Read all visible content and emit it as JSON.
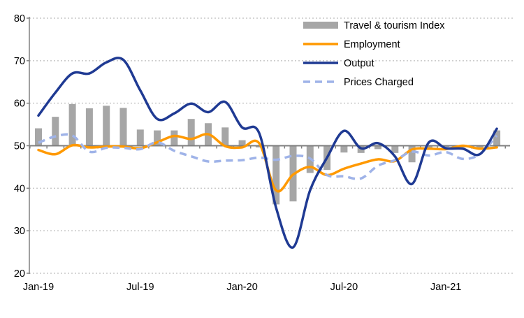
{
  "chart_data": {
    "type": "bar+line",
    "title": "",
    "xlabel": "",
    "ylabel": "",
    "ylim": [
      20,
      80
    ],
    "yticks": [
      "20",
      "30",
      "40",
      "50",
      "60",
      "70",
      "80"
    ],
    "bar_baseline": 50,
    "grid": "horizontal dotted",
    "legend_position": "top-right",
    "x": [
      "Jan-19",
      "Feb-19",
      "Mar-19",
      "Apr-19",
      "May-19",
      "Jun-19",
      "Jul-19",
      "Aug-19",
      "Sep-19",
      "Oct-19",
      "Nov-19",
      "Dec-19",
      "Jan-20",
      "Feb-20",
      "Mar-20",
      "Apr-20",
      "May-20",
      "Jun-20",
      "Jul-20",
      "Aug-20",
      "Sep-20",
      "Oct-20",
      "Nov-20",
      "Dec-20",
      "Jan-21",
      "Feb-21",
      "Mar-21",
      "Apr-21"
    ],
    "xtick_labels": [
      {
        "label": "Jan-19",
        "index": 0
      },
      {
        "label": "Jul-19",
        "index": 6
      },
      {
        "label": "Jan-20",
        "index": 12
      },
      {
        "label": "Jul-20",
        "index": 18
      },
      {
        "label": "Jan-21",
        "index": 24
      }
    ],
    "series": [
      {
        "name": "Travel & tourism Index",
        "kind": "bar",
        "color": "#a6a6a6",
        "values": [
          54.1,
          56.8,
          59.8,
          58.8,
          59.4,
          58.9,
          53.8,
          53.6,
          53.6,
          56.3,
          55.3,
          54.3,
          51.3,
          49.6,
          36.2,
          36.9,
          43.6,
          44.3,
          48.4,
          48.3,
          49.2,
          48.3,
          46.1,
          49.5,
          49.7,
          49.6,
          49.2,
          53.6
        ]
      },
      {
        "name": "Employment",
        "kind": "line",
        "color": "#ff9900",
        "dash": false,
        "values": [
          49.0,
          48.0,
          50.1,
          49.6,
          49.8,
          49.8,
          49.4,
          50.8,
          52.3,
          51.6,
          52.7,
          49.9,
          49.6,
          50.6,
          39.5,
          43.2,
          45.0,
          43.1,
          44.6,
          45.8,
          46.8,
          46.4,
          49.1,
          49.3,
          49.2,
          50.0,
          49.3,
          49.6
        ]
      },
      {
        "name": "Output",
        "kind": "line",
        "color": "#1f3a93",
        "dash": false,
        "values": [
          57.1,
          62.5,
          67.0,
          67.0,
          69.6,
          70.2,
          63.0,
          56.3,
          57.6,
          59.9,
          57.9,
          60.3,
          54.3,
          53.0,
          35.4,
          26.1,
          39.5,
          47.2,
          53.5,
          49.4,
          50.6,
          47.5,
          41.0,
          50.8,
          49.4,
          49.3,
          48.0,
          54.0
        ]
      },
      {
        "name": "Prices Charged",
        "kind": "line",
        "color": "#9fb3e8",
        "dash": true,
        "values": [
          50.7,
          52.2,
          52.4,
          48.6,
          49.5,
          49.5,
          49.2,
          50.8,
          48.8,
          47.5,
          46.3,
          46.5,
          46.6,
          47.2,
          46.7,
          47.6,
          47.0,
          43.1,
          42.8,
          42.3,
          45.3,
          46.6,
          48.6,
          47.7,
          48.5,
          46.9,
          48.0,
          52.4
        ]
      }
    ]
  }
}
